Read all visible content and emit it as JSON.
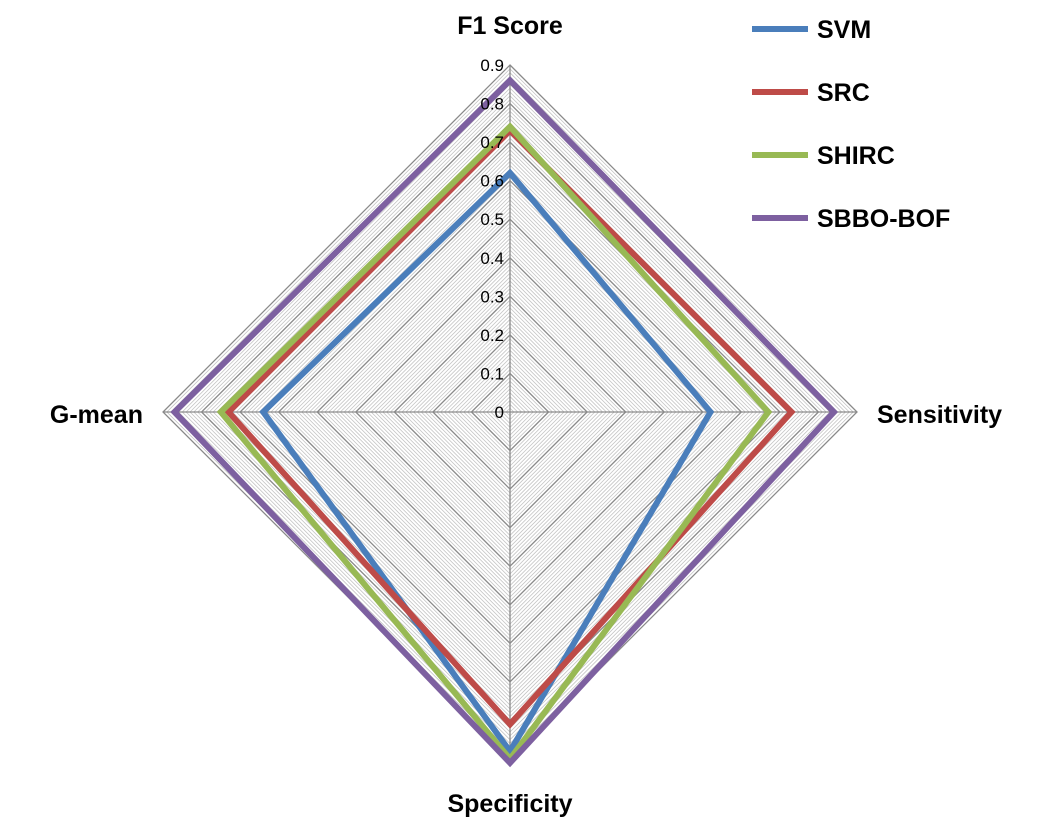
{
  "chart_data": {
    "type": "radar",
    "title": "",
    "axes": [
      "F1 Score",
      "Sensitivity",
      "Specificity",
      "G-mean"
    ],
    "rlim": [
      0,
      0.9
    ],
    "tick_step": 0.1,
    "tick_labels": [
      "0",
      "0.1",
      "0.2",
      "0.3",
      "0.4",
      "0.5",
      "0.6",
      "0.7",
      "0.8",
      "0.9"
    ],
    "grid": true,
    "legend_position": "top-right",
    "series": [
      {
        "name": "SVM",
        "color": "#4a7ebb",
        "values": [
          0.62,
          0.52,
          0.88,
          0.64
        ]
      },
      {
        "name": "SRC",
        "color": "#be4b48",
        "values": [
          0.73,
          0.73,
          0.81,
          0.73
        ]
      },
      {
        "name": "SHIRC",
        "color": "#98b954",
        "values": [
          0.74,
          0.67,
          0.9,
          0.75
        ]
      },
      {
        "name": "SBBO-BOF",
        "color": "#7d60a0",
        "values": [
          0.86,
          0.84,
          0.91,
          0.87
        ]
      }
    ]
  }
}
